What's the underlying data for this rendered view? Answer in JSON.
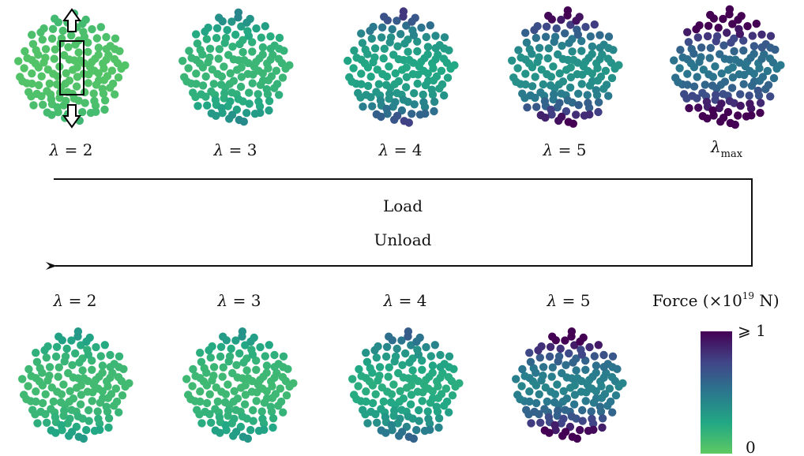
{
  "load_label": "Load",
  "unload_label": "Unload",
  "lambda_symbol": "λ",
  "equals": "= ",
  "max_subscript": "max",
  "loading_row": [
    {
      "lambda": "2",
      "panel": "load-2",
      "force": 0.08
    },
    {
      "lambda": "3",
      "panel": "load-3",
      "force": 0.25
    },
    {
      "lambda": "4",
      "panel": "load-4",
      "force": 0.45
    },
    {
      "lambda": "5",
      "panel": "load-5",
      "force": 0.62
    },
    {
      "lambda": "max",
      "panel": "load-max",
      "force": 0.9
    }
  ],
  "unloading_row": [
    {
      "lambda": "2",
      "panel": "unload-2",
      "force": 0.2
    },
    {
      "lambda": "3",
      "panel": "unload-3",
      "force": 0.22
    },
    {
      "lambda": "4",
      "panel": "unload-4",
      "force": 0.38
    },
    {
      "lambda": "5",
      "panel": "unload-5",
      "force": 0.78
    }
  ],
  "colorbar": {
    "title_prefix": "Force (×10",
    "title_exponent": "19",
    "title_suffix": " N)",
    "max_label": "⩾ 1",
    "min_label": "0",
    "colors": [
      "#440154",
      "#414487",
      "#2a788e",
      "#22a884",
      "#7ad151"
    ]
  }
}
